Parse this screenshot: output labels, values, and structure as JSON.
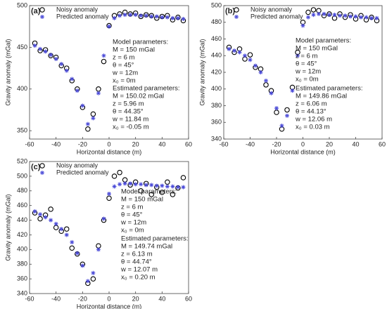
{
  "chart_data": [
    {
      "type": "scatter",
      "panel_label": "(a)",
      "xlabel": "Horizontal distance (m)",
      "ylabel": "Gravity anomaly (mGal)",
      "xlim": [
        -60,
        60
      ],
      "xticks": [
        -60,
        -40,
        -20,
        0,
        20,
        40,
        60
      ],
      "ylim": [
        340,
        500
      ],
      "yticks": [
        350,
        400,
        450,
        500
      ],
      "x": [
        -56,
        -52,
        -48,
        -44,
        -40,
        -36,
        -32,
        -28,
        -24,
        -20,
        -16,
        -12,
        -8,
        -4,
        0,
        4,
        8,
        12,
        16,
        20,
        24,
        28,
        32,
        36,
        40,
        44,
        48,
        52,
        56
      ],
      "series": [
        {
          "name": "Noisy anomaly",
          "color": "#000000",
          "marker": "circle",
          "values": [
            455,
            446,
            447,
            440,
            438,
            428,
            425,
            410,
            400,
            378,
            352,
            370,
            400,
            433,
            476,
            488,
            490,
            492,
            490,
            491,
            487,
            489,
            488,
            485,
            487,
            488,
            483,
            486,
            482
          ]
        },
        {
          "name": "Predicted anomaly",
          "color": "#4b4bd8",
          "marker": "asterisk",
          "values": [
            452,
            448,
            445,
            441,
            436,
            430,
            422,
            412,
            398,
            380,
            358,
            365,
            395,
            440,
            475,
            485,
            488,
            489,
            489,
            489,
            488,
            488,
            487,
            487,
            486,
            486,
            485,
            485,
            484
          ]
        }
      ],
      "model_parameters": [
        "Model parameters:",
        "M = 150 mGal",
        "z = 6 m",
        "θ = 45°",
        "w = 12m",
        "x₀ = 0m"
      ],
      "estimated_parameters": [
        "Estimated parameters:",
        "M = 150.02 mGal",
        "z = 5.96 m",
        "θ = 44.35°",
        "w = 11.84 m",
        "x₀ = -0.05 m"
      ]
    },
    {
      "type": "scatter",
      "panel_label": "(b)",
      "xlabel": "Horizontal distance (m)",
      "ylabel": "Gravity anomaly (mGal)",
      "xlim": [
        -60,
        60
      ],
      "xticks": [
        -60,
        -40,
        -20,
        0,
        20,
        40,
        60
      ],
      "ylim": [
        340,
        500
      ],
      "yticks": [
        340,
        360,
        380,
        400,
        420,
        440,
        460,
        480,
        500
      ],
      "x": [
        -56,
        -52,
        -48,
        -44,
        -40,
        -36,
        -32,
        -28,
        -24,
        -20,
        -16,
        -12,
        -8,
        -4,
        0,
        4,
        8,
        12,
        16,
        20,
        24,
        28,
        32,
        36,
        40,
        44,
        48,
        52,
        56
      ],
      "series": [
        {
          "name": "Noisy anomaly",
          "color": "#000000",
          "marker": "circle",
          "values": [
            450,
            444,
            448,
            436,
            441,
            426,
            424,
            405,
            398,
            372,
            352,
            375,
            402,
            444,
            480,
            492,
            495,
            494,
            488,
            490,
            485,
            490,
            486,
            489,
            484,
            488,
            483,
            486,
            482
          ]
        },
        {
          "name": "Predicted anomaly",
          "color": "#4b4bd8",
          "marker": "asterisk",
          "values": [
            448,
            446,
            444,
            440,
            435,
            428,
            420,
            410,
            395,
            377,
            356,
            368,
            398,
            440,
            476,
            486,
            489,
            490,
            490,
            489,
            489,
            488,
            488,
            487,
            487,
            486,
            486,
            485,
            485
          ]
        }
      ],
      "model_parameters": [
        "Model parameters:",
        "M = 150 mGal",
        "z = 6 m",
        "θ = 45°",
        "w = 12m",
        "x₀ = 0m"
      ],
      "estimated_parameters": [
        "Estimated parameters:",
        "M = 149.86 mGal",
        "z = 6.06 m",
        "θ = 44.13°",
        "w = 12.06 m",
        "x₀ = 0.03 m"
      ]
    },
    {
      "type": "scatter",
      "panel_label": "(c)",
      "xlabel": "Horizontal distance (m)",
      "ylabel": "Gravity anomaly (mGal)",
      "xlim": [
        -60,
        60
      ],
      "xticks": [
        -60,
        -40,
        -20,
        0,
        20,
        40,
        60
      ],
      "ylim": [
        340,
        520
      ],
      "yticks": [
        340,
        360,
        380,
        400,
        420,
        440,
        460,
        480,
        500,
        520
      ],
      "x": [
        -56,
        -52,
        -48,
        -44,
        -40,
        -36,
        -32,
        -28,
        -24,
        -20,
        -16,
        -12,
        -8,
        -4,
        0,
        4,
        8,
        12,
        16,
        20,
        24,
        28,
        32,
        36,
        40,
        44,
        48,
        52,
        56
      ],
      "series": [
        {
          "name": "Noisy anomaly",
          "color": "#000000",
          "marker": "circle",
          "values": [
            450,
            442,
            447,
            455,
            430,
            425,
            428,
            402,
            394,
            380,
            354,
            360,
            405,
            440,
            470,
            500,
            505,
            495,
            488,
            492,
            480,
            490,
            475,
            485,
            478,
            492,
            475,
            484,
            498
          ]
        },
        {
          "name": "Predicted anomaly",
          "color": "#4b4bd8",
          "marker": "asterisk",
          "values": [
            452,
            448,
            444,
            440,
            435,
            428,
            420,
            410,
            395,
            378,
            357,
            368,
            400,
            442,
            476,
            486,
            489,
            490,
            490,
            489,
            489,
            488,
            488,
            487,
            487,
            486,
            486,
            485,
            485
          ]
        }
      ],
      "model_parameters": [
        "Model parameters:",
        "M = 150 mGal",
        "z = 6 m",
        "θ = 45°",
        "w = 12m",
        "x₀ = 0m"
      ],
      "estimated_parameters": [
        "Estimated parameters:",
        "M = 149.74 mGal",
        "z = 6.13 m",
        "θ = 44.74°",
        "w = 12.07 m",
        "x₀ = 0.20 m"
      ]
    }
  ]
}
